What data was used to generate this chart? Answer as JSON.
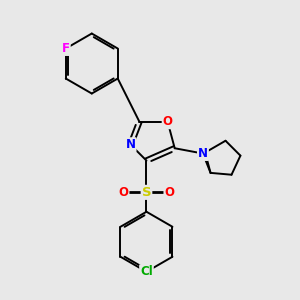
{
  "background_color": "#e8e8e8",
  "bond_color": "#000000",
  "atom_colors": {
    "F": "#ff00ff",
    "O": "#ff0000",
    "N": "#0000ff",
    "S": "#cccc00",
    "Cl": "#00aa00",
    "C": "#000000"
  }
}
